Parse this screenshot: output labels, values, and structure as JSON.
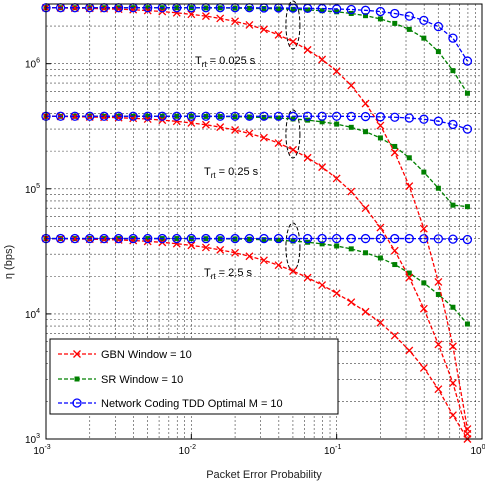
{
  "chart_data": {
    "type": "line",
    "title": "",
    "xlabel": "Packet Error Probability",
    "ylabel": "η (bps)",
    "xscale": "log",
    "yscale": "log",
    "xlim": [
      0.001,
      1
    ],
    "ylim": [
      1000,
      3000000
    ],
    "grid": true,
    "legend_position": "bottom-left",
    "x_ticks": [
      {
        "base": "10",
        "exp": "-3"
      },
      {
        "base": "10",
        "exp": "-2"
      },
      {
        "base": "10",
        "exp": "-1"
      },
      {
        "base": "10",
        "exp": "0"
      }
    ],
    "y_ticks": [
      {
        "base": "10",
        "exp": "3"
      },
      {
        "base": "10",
        "exp": "4"
      },
      {
        "base": "10",
        "exp": "5"
      },
      {
        "base": "10",
        "exp": "6"
      }
    ],
    "x": [
      0.001,
      0.00126,
      0.00158,
      0.002,
      0.00251,
      0.00316,
      0.00398,
      0.00501,
      0.00631,
      0.00794,
      0.01,
      0.0126,
      0.0158,
      0.02,
      0.0251,
      0.0316,
      0.0398,
      0.0501,
      0.0631,
      0.0794,
      0.1,
      0.126,
      0.158,
      0.2,
      0.251,
      0.316,
      0.398,
      0.501,
      0.631,
      0.794
    ],
    "groups": [
      {
        "label": "T",
        "sub": "rt",
        "value": " = 0.025 s"
      },
      {
        "label": "T",
        "sub": "rt",
        "value": " = 0.25 s"
      },
      {
        "label": "T",
        "sub": "rt",
        "value": " = 2.5 s"
      }
    ],
    "series": [
      {
        "name": "GBN Window = 10",
        "color": "#ff0000",
        "marker": "x",
        "groups": [
          [
            2800000,
            2790000,
            2780000,
            2770000,
            2750000,
            2730000,
            2700000,
            2660000,
            2610000,
            2550000,
            2480000,
            2400000,
            2300000,
            2180000,
            2040000,
            1880000,
            1700000,
            1500000,
            1290000,
            1080000,
            870000,
            670000,
            480000,
            320000,
            195000,
            105000,
            48000,
            18000,
            5500,
            1200
          ],
          [
            380000,
            379000,
            377000,
            375000,
            373000,
            370000,
            366000,
            361000,
            354000,
            346000,
            336000,
            325000,
            311000,
            295000,
            277000,
            256000,
            232000,
            205000,
            177000,
            149000,
            121000,
            95000,
            70000,
            49000,
            32000,
            19500,
            11000,
            5700,
            2800,
            1100
          ],
          [
            40000,
            39900,
            39750,
            39550,
            39300,
            39000,
            38600,
            38000,
            37300,
            36400,
            35300,
            34000,
            32500,
            30800,
            28900,
            26800,
            24500,
            22000,
            19500,
            17000,
            14600,
            12400,
            10400,
            8500,
            6700,
            5100,
            3700,
            2500,
            1550,
            1000
          ]
        ]
      },
      {
        "name": "SR Window = 10",
        "color": "#008000",
        "marker": "s",
        "groups": [
          [
            2800000,
            2800000,
            2800000,
            2800000,
            2800000,
            2800000,
            2800000,
            2800000,
            2800000,
            2800000,
            2800000,
            2790000,
            2790000,
            2780000,
            2770000,
            2760000,
            2740000,
            2720000,
            2690000,
            2650000,
            2600000,
            2520000,
            2420000,
            2280000,
            2100000,
            1880000,
            1600000,
            1250000,
            880000,
            580000
          ],
          [
            380000,
            380000,
            380000,
            380000,
            380000,
            380000,
            380000,
            380000,
            380000,
            380000,
            380000,
            379000,
            378000,
            377000,
            375000,
            372000,
            368000,
            362000,
            354000,
            343000,
            329000,
            310000,
            286000,
            255000,
            218000,
            177000,
            136000,
            101000,
            74000,
            72000
          ],
          [
            40000,
            40000,
            40000,
            40000,
            40000,
            40000,
            40000,
            40000,
            40000,
            40000,
            40000,
            39900,
            39800,
            39700,
            39500,
            39200,
            38800,
            38200,
            37400,
            36300,
            34900,
            33100,
            30800,
            28000,
            24800,
            21200,
            17700,
            14300,
            11300,
            8300
          ]
        ]
      },
      {
        "name": "Network Coding TDD Optimal M = 10",
        "color": "#0000ff",
        "marker": "o",
        "groups": [
          [
            2800000,
            2800000,
            2800000,
            2800000,
            2800000,
            2800000,
            2800000,
            2800000,
            2800000,
            2800000,
            2800000,
            2800000,
            2800000,
            2800000,
            2800000,
            2790000,
            2790000,
            2780000,
            2770000,
            2760000,
            2740000,
            2710000,
            2670000,
            2610000,
            2520000,
            2400000,
            2220000,
            1980000,
            1600000,
            1050000
          ],
          [
            380000,
            380000,
            380000,
            380000,
            380000,
            380000,
            380000,
            380000,
            380000,
            380000,
            380000,
            380000,
            380000,
            380000,
            380000,
            380000,
            380000,
            380000,
            380000,
            380000,
            380000,
            379000,
            378000,
            376000,
            373000,
            368000,
            360000,
            347000,
            327000,
            300000
          ],
          [
            40000,
            40000,
            40000,
            40000,
            40000,
            40000,
            40000,
            40000,
            40000,
            40000,
            40000,
            40000,
            40000,
            40000,
            40000,
            40000,
            40000,
            40000,
            40000,
            40000,
            40000,
            40000,
            40000,
            40000,
            40000,
            40000,
            39900,
            39800,
            39600,
            39300
          ]
        ]
      }
    ]
  }
}
